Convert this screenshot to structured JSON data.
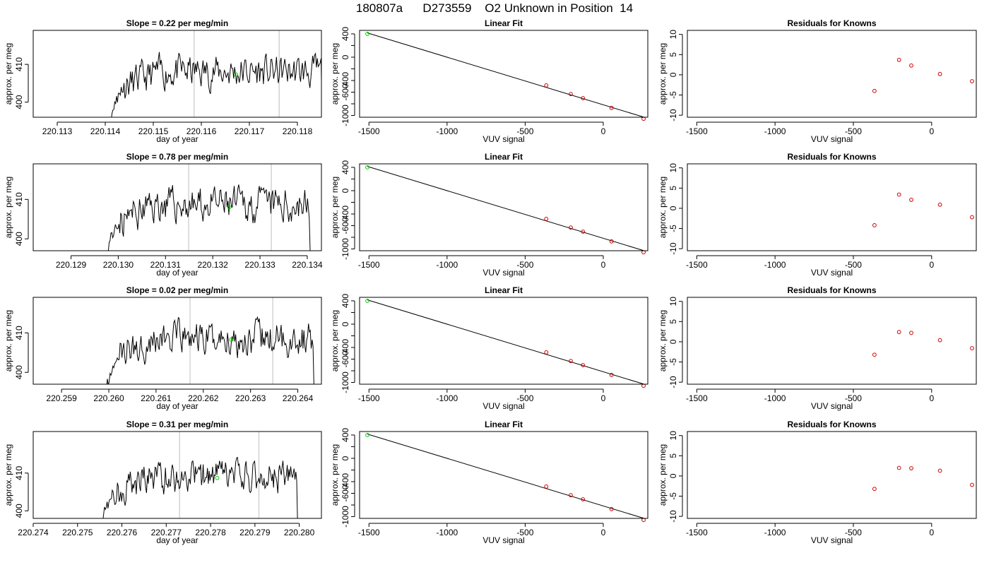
{
  "title": "180807a      D273559    O2 Unknown in Position  14",
  "colors": {
    "known": "#cc0000",
    "unknown": "#00cc00",
    "line": "#000000",
    "marker": "#c8c8c8"
  },
  "rows": [
    {
      "ts": {
        "title": "Slope =  0.22  per meg/min",
        "xlabel": "day of year",
        "ylabel": "approx. per meg",
        "xlim": [
          220.1125,
          220.1185
        ],
        "ylim": [
          396,
          419
        ],
        "xticks": [
          220.113,
          220.114,
          220.115,
          220.116,
          220.117,
          220.118
        ],
        "xtick_labels": [
          "220.113",
          "220.114",
          "220.115",
          "220.116",
          "220.117",
          "220.118"
        ],
        "yticks": [
          400,
          410
        ],
        "ytick_labels": [
          "400",
          "410"
        ],
        "vlines": [
          220.11585,
          220.11762
        ],
        "start": 220.1141,
        "end": 220.11855,
        "level": 408.0,
        "seed": 11,
        "unknown_point": [
          220.11672,
          407.3
        ]
      },
      "fit": {
        "title": "Linear Fit",
        "xlabel": "VUV signal",
        "ylabel": "approx. per meg",
        "xlim": [
          -1560,
          285
        ],
        "ylim": [
          -1030,
          460
        ],
        "xticks": [
          -1500,
          -1000,
          -500,
          0
        ],
        "xtick_labels": [
          "-1500",
          "-1000",
          "-500",
          "0"
        ],
        "yticks": [
          -1000,
          -800,
          -600,
          -400,
          -200,
          0,
          200,
          400
        ],
        "ytick_labels": [
          "-1000",
          "",
          "-600",
          "-400",
          "",
          "0",
          "",
          "400"
        ],
        "knowns": [
          [
            -365,
            -484
          ],
          [
            -208,
            -632
          ],
          [
            -130,
            -703
          ],
          [
            53,
            -870
          ],
          [
            258,
            -1057
          ]
        ],
        "unknown": [
          -1510,
          400
        ]
      },
      "res": {
        "title": "Residuals for Knowns",
        "xlabel": "VUV signal",
        "ylabel": "approx. per meg",
        "xlim": [
          -1560,
          285
        ],
        "ylim": [
          -10.5,
          11
        ],
        "xticks": [
          -1500,
          -1000,
          -500,
          0
        ],
        "xtick_labels": [
          "-1500",
          "-1000",
          "-500",
          "0"
        ],
        "yticks": [
          -10,
          -5,
          0,
          5,
          10
        ],
        "ytick_labels": [
          "-10",
          "-5",
          "0",
          "5",
          "10"
        ],
        "points": [
          [
            -365,
            -4.0
          ],
          [
            -208,
            3.7
          ],
          [
            -130,
            2.3
          ],
          [
            53,
            0.2
          ],
          [
            258,
            -1.6
          ]
        ]
      }
    },
    {
      "ts": {
        "title": "Slope =  0.78  per meg/min",
        "xlabel": "day of year",
        "ylabel": "approx. per meg",
        "xlim": [
          220.1282,
          220.1343
        ],
        "ylim": [
          397,
          419
        ],
        "xticks": [
          220.129,
          220.13,
          220.131,
          220.132,
          220.133,
          220.134
        ],
        "xtick_labels": [
          "220.129",
          "220.130",
          "220.131",
          "220.132",
          "220.133",
          "220.134"
        ],
        "yticks": [
          400,
          410
        ],
        "ytick_labels": [
          "400",
          "410"
        ],
        "vlines": [
          220.13149,
          220.13324
        ],
        "start": 220.12975,
        "end": 220.1341,
        "level": 408.5,
        "seed": 23,
        "unknown_point": [
          220.13235,
          408.0
        ]
      },
      "fit": {
        "title": "Linear Fit",
        "xlabel": "VUV signal",
        "ylabel": "approx. per meg",
        "xlim": [
          -1560,
          285
        ],
        "ylim": [
          -1030,
          460
        ],
        "xticks": [
          -1500,
          -1000,
          -500,
          0
        ],
        "xtick_labels": [
          "-1500",
          "-1000",
          "-500",
          "0"
        ],
        "yticks": [
          -1000,
          -800,
          -600,
          -400,
          -200,
          0,
          200,
          400
        ],
        "ytick_labels": [
          "-1000",
          "",
          "-600",
          "-400",
          "",
          "0",
          "",
          "400"
        ],
        "knowns": [
          [
            -365,
            -484
          ],
          [
            -208,
            -632
          ],
          [
            -130,
            -703
          ],
          [
            53,
            -870
          ],
          [
            258,
            -1057
          ]
        ],
        "unknown": [
          -1510,
          400
        ]
      },
      "res": {
        "title": "Residuals for Knowns",
        "xlabel": "VUV signal",
        "ylabel": "approx. per meg",
        "xlim": [
          -1560,
          285
        ],
        "ylim": [
          -10.5,
          11
        ],
        "xticks": [
          -1500,
          -1000,
          -500,
          0
        ],
        "xtick_labels": [
          "-1500",
          "-1000",
          "-500",
          "0"
        ],
        "yticks": [
          -10,
          -5,
          0,
          5,
          10
        ],
        "ytick_labels": [
          "-10",
          "-5",
          "0",
          "5",
          "10"
        ],
        "points": [
          [
            -365,
            -4.2
          ],
          [
            -208,
            3.4
          ],
          [
            -130,
            2.1
          ],
          [
            53,
            0.9
          ],
          [
            258,
            -2.2
          ]
        ]
      }
    },
    {
      "ts": {
        "title": "Slope =  0.02  per meg/min",
        "xlabel": "day of year",
        "ylabel": "approx. per meg",
        "xlim": [
          220.2584,
          220.2645
        ],
        "ylim": [
          397,
          419
        ],
        "xticks": [
          220.259,
          220.26,
          220.261,
          220.262,
          220.263,
          220.264
        ],
        "xtick_labels": [
          "220.259",
          "220.260",
          "220.261",
          "220.262",
          "220.263",
          "220.264"
        ],
        "yticks": [
          400,
          410
        ],
        "ytick_labels": [
          "400",
          "410"
        ],
        "vlines": [
          220.26172,
          220.26347
        ],
        "start": 220.25995,
        "end": 220.26438,
        "level": 408.5,
        "seed": 37,
        "unknown_point": [
          220.26259,
          408.3
        ]
      },
      "fit": {
        "title": "Linear Fit",
        "xlabel": "VUV signal",
        "ylabel": "approx. per meg",
        "xlim": [
          -1560,
          285
        ],
        "ylim": [
          -1030,
          460
        ],
        "xticks": [
          -1500,
          -1000,
          -500,
          0
        ],
        "xtick_labels": [
          "-1500",
          "-1000",
          "-500",
          "0"
        ],
        "yticks": [
          -1000,
          -800,
          -600,
          -400,
          -200,
          0,
          200,
          400
        ],
        "ytick_labels": [
          "-1000",
          "",
          "-600",
          "-400",
          "",
          "0",
          "",
          "400"
        ],
        "knowns": [
          [
            -365,
            -484
          ],
          [
            -208,
            -632
          ],
          [
            -130,
            -703
          ],
          [
            53,
            -870
          ],
          [
            258,
            -1057
          ]
        ],
        "unknown": [
          -1510,
          400
        ]
      },
      "res": {
        "title": "Residuals for Knowns",
        "xlabel": "VUV signal",
        "ylabel": "approx. per meg",
        "xlim": [
          -1560,
          285
        ],
        "ylim": [
          -10.5,
          11
        ],
        "xticks": [
          -1500,
          -1000,
          -500,
          0
        ],
        "xtick_labels": [
          "-1500",
          "-1000",
          "-500",
          "0"
        ],
        "yticks": [
          -10,
          -5,
          0,
          5,
          10
        ],
        "ytick_labels": [
          "-10",
          "-5",
          "0",
          "5",
          "10"
        ],
        "points": [
          [
            -365,
            -3.2
          ],
          [
            -208,
            2.4
          ],
          [
            -130,
            2.2
          ],
          [
            53,
            0.4
          ],
          [
            258,
            -1.6
          ]
        ]
      }
    },
    {
      "ts": {
        "title": "Slope =  0.31  per meg/min",
        "xlabel": "day of year",
        "ylabel": "approx. per meg",
        "xlim": [
          220.274,
          220.2805
        ],
        "ylim": [
          398,
          421
        ],
        "xticks": [
          220.274,
          220.275,
          220.276,
          220.277,
          220.278,
          220.279,
          220.28
        ],
        "xtick_labels": [
          "220.274",
          "220.275",
          "220.276",
          "220.277",
          "220.278",
          "220.279",
          "220.280"
        ],
        "yticks": [
          400,
          410
        ],
        "ytick_labels": [
          "400",
          "410"
        ],
        "vlines": [
          220.2773,
          220.27909
        ],
        "start": 220.27555,
        "end": 220.28,
        "level": 409.0,
        "seed": 53,
        "unknown_point": [
          220.27815,
          408.7
        ]
      },
      "fit": {
        "title": "Linear Fit",
        "xlabel": "VUV signal",
        "ylabel": "approx. per meg",
        "xlim": [
          -1560,
          285
        ],
        "ylim": [
          -1030,
          460
        ],
        "xticks": [
          -1500,
          -1000,
          -500,
          0
        ],
        "xtick_labels": [
          "-1500",
          "-1000",
          "-500",
          "0"
        ],
        "yticks": [
          -1000,
          -800,
          -600,
          -400,
          -200,
          0,
          200,
          400
        ],
        "ytick_labels": [
          "-1000",
          "",
          "-600",
          "-400",
          "",
          "0",
          "",
          "400"
        ],
        "knowns": [
          [
            -365,
            -484
          ],
          [
            -208,
            -632
          ],
          [
            -130,
            -703
          ],
          [
            53,
            -870
          ],
          [
            258,
            -1057
          ]
        ],
        "unknown": [
          -1510,
          400
        ]
      },
      "res": {
        "title": "Residuals for Knowns",
        "xlabel": "VUV signal",
        "ylabel": "approx. per meg",
        "xlim": [
          -1560,
          285
        ],
        "ylim": [
          -10.5,
          11
        ],
        "xticks": [
          -1500,
          -1000,
          -500,
          0
        ],
        "xtick_labels": [
          "-1500",
          "-1000",
          "-500",
          "0"
        ],
        "yticks": [
          -10,
          -5,
          0,
          5,
          10
        ],
        "ytick_labels": [
          "-10",
          "-5",
          "0",
          "5",
          "10"
        ],
        "points": [
          [
            -365,
            -3.2
          ],
          [
            -208,
            2.0
          ],
          [
            -130,
            1.9
          ],
          [
            53,
            1.3
          ],
          [
            258,
            -2.2
          ]
        ]
      }
    }
  ],
  "chart_data": [
    {
      "type": "line",
      "title": "Slope =  0.22  per meg/min",
      "xlabel": "day of year",
      "ylabel": "approx. per meg",
      "xlim": [
        220.1125,
        220.1185
      ],
      "ylim": [
        396,
        419
      ],
      "x_range": [
        220.1141,
        220.11855
      ],
      "approx_level": 408.0,
      "unknown_point": [
        220.11672,
        407.3
      ],
      "vertical_markers": [
        220.11585,
        220.11762
      ]
    },
    {
      "type": "scatter",
      "title": "Linear Fit",
      "xlabel": "VUV signal",
      "ylabel": "approx. per meg",
      "series": [
        {
          "values": [
            [
              -365,
              -484
            ],
            [
              -208,
              -632
            ],
            [
              -130,
              -703
            ],
            [
              53,
              -870
            ],
            [
              258,
              -1057
            ]
          ]
        }
      ],
      "unknown": [
        -1510,
        400
      ]
    },
    {
      "type": "scatter",
      "title": "Residuals for Knowns",
      "xlabel": "VUV signal",
      "ylabel": "approx. per meg",
      "values": [
        [
          -365,
          -4.0
        ],
        [
          -208,
          3.7
        ],
        [
          -130,
          2.3
        ],
        [
          53,
          0.2
        ],
        [
          258,
          -1.6
        ]
      ]
    },
    {
      "type": "line",
      "title": "Slope =  0.78  per meg/min",
      "xlabel": "day of year",
      "ylabel": "approx. per meg",
      "xlim": [
        220.1282,
        220.1343
      ],
      "ylim": [
        397,
        419
      ],
      "x_range": [
        220.12975,
        220.1341
      ],
      "approx_level": 408.5,
      "unknown_point": [
        220.13235,
        408.0
      ],
      "vertical_markers": [
        220.13149,
        220.13324
      ]
    },
    {
      "type": "scatter",
      "title": "Linear Fit",
      "xlabel": "VUV signal",
      "ylabel": "approx. per meg",
      "series": [
        {
          "values": [
            [
              -365,
              -484
            ],
            [
              -208,
              -632
            ],
            [
              -130,
              -703
            ],
            [
              53,
              -870
            ],
            [
              258,
              -1057
            ]
          ]
        }
      ],
      "unknown": [
        -1510,
        400
      ]
    },
    {
      "type": "scatter",
      "title": "Residuals for Knowns",
      "xlabel": "VUV signal",
      "ylabel": "approx. per meg",
      "values": [
        [
          -365,
          -4.2
        ],
        [
          -208,
          3.4
        ],
        [
          -130,
          2.1
        ],
        [
          53,
          0.9
        ],
        [
          258,
          -2.2
        ]
      ]
    },
    {
      "type": "line",
      "title": "Slope =  0.02  per meg/min",
      "xlabel": "day of year",
      "ylabel": "approx. per meg",
      "xlim": [
        220.2584,
        220.2645
      ],
      "ylim": [
        397,
        419
      ],
      "x_range": [
        220.25995,
        220.26438
      ],
      "approx_level": 408.5,
      "unknown_point": [
        220.26259,
        408.3
      ],
      "vertical_markers": [
        220.26172,
        220.26347
      ]
    },
    {
      "type": "scatter",
      "title": "Linear Fit",
      "xlabel": "VUV signal",
      "ylabel": "approx. per meg",
      "series": [
        {
          "values": [
            [
              -365,
              -484
            ],
            [
              -208,
              -632
            ],
            [
              -130,
              -703
            ],
            [
              53,
              -870
            ],
            [
              258,
              -1057
            ]
          ]
        }
      ],
      "unknown": [
        -1510,
        400
      ]
    },
    {
      "type": "scatter",
      "title": "Residuals for Knowns",
      "xlabel": "VUV signal",
      "ylabel": "approx. per meg",
      "values": [
        [
          -365,
          -3.2
        ],
        [
          -208,
          2.4
        ],
        [
          -130,
          2.2
        ],
        [
          53,
          0.4
        ],
        [
          258,
          -1.6
        ]
      ]
    },
    {
      "type": "line",
      "title": "Slope =  0.31  per meg/min",
      "xlabel": "day of year",
      "ylabel": "approx. per meg",
      "xlim": [
        220.274,
        220.2805
      ],
      "ylim": [
        398,
        421
      ],
      "x_range": [
        220.27555,
        220.28
      ],
      "approx_level": 409.0,
      "unknown_point": [
        220.27815,
        408.7
      ],
      "vertical_markers": [
        220.2773,
        220.27909
      ]
    },
    {
      "type": "scatter",
      "title": "Linear Fit",
      "xlabel": "VUV signal",
      "ylabel": "approx. per meg",
      "series": [
        {
          "values": [
            [
              -365,
              -484
            ],
            [
              -208,
              -632
            ],
            [
              -130,
              -703
            ],
            [
              53,
              -870
            ],
            [
              258,
              -1057
            ]
          ]
        }
      ],
      "unknown": [
        -1510,
        400
      ]
    },
    {
      "type": "scatter",
      "title": "Residuals for Knowns",
      "xlabel": "VUV signal",
      "ylabel": "approx. per meg",
      "values": [
        [
          -365,
          -3.2
        ],
        [
          -208,
          2.0
        ],
        [
          -130,
          1.9
        ],
        [
          53,
          1.3
        ],
        [
          258,
          -2.2
        ]
      ]
    }
  ]
}
